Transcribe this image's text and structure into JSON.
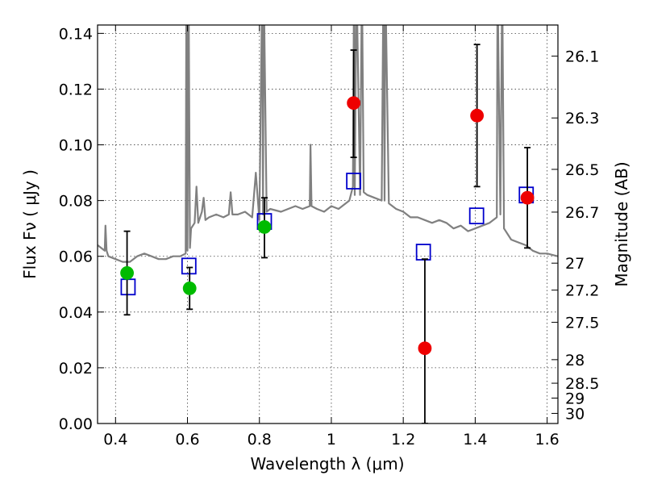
{
  "chart_data": {
    "type": "scatter",
    "title": "",
    "xlabel": "Wavelength  λ (μm)",
    "ylabel": "Flux  Fν  ( μJy )",
    "y2label": "Magnitude (AB)",
    "xlim": [
      0.35,
      1.63
    ],
    "ylim": [
      0.0,
      0.143
    ],
    "grid": true,
    "x_ticks": [
      0.4,
      0.6,
      0.8,
      1.0,
      1.2,
      1.4,
      1.6
    ],
    "x_tick_labels": [
      "0.4",
      "0.6",
      "0.8",
      "1",
      "1.2",
      "1.4",
      "1.6"
    ],
    "y_ticks": [
      0.0,
      0.02,
      0.04,
      0.06,
      0.08,
      0.1,
      0.12,
      0.14
    ],
    "y_tick_labels": [
      "0.00",
      "0.02",
      "0.04",
      "0.06",
      "0.08",
      "0.10",
      "0.12",
      "0.14"
    ],
    "mag_tick_labels": [
      "26.1",
      "26.3",
      "26.5",
      "26.7",
      "27",
      "27.2",
      "27.5",
      "28",
      "28.5",
      "29",
      "30"
    ],
    "model_spectrum": {
      "color": "#808080",
      "x": [
        0.35,
        0.37,
        0.372,
        0.375,
        0.38,
        0.4,
        0.42,
        0.44,
        0.46,
        0.48,
        0.5,
        0.52,
        0.54,
        0.56,
        0.58,
        0.595,
        0.597,
        0.6,
        0.603,
        0.607,
        0.61,
        0.62,
        0.625,
        0.63,
        0.64,
        0.645,
        0.65,
        0.66,
        0.68,
        0.7,
        0.715,
        0.72,
        0.725,
        0.74,
        0.76,
        0.78,
        0.79,
        0.8,
        0.808,
        0.81,
        0.812,
        0.82,
        0.83,
        0.86,
        0.88,
        0.9,
        0.92,
        0.94,
        0.942,
        0.945,
        0.96,
        0.98,
        1.0,
        1.02,
        1.04,
        1.05,
        1.06,
        1.063,
        1.065,
        1.07,
        1.08,
        1.085,
        1.09,
        1.1,
        1.12,
        1.14,
        1.145,
        1.148,
        1.15,
        1.16,
        1.18,
        1.2,
        1.22,
        1.24,
        1.26,
        1.28,
        1.3,
        1.32,
        1.34,
        1.36,
        1.38,
        1.4,
        1.42,
        1.44,
        1.46,
        1.462,
        1.47,
        1.475,
        1.48,
        1.5,
        1.52,
        1.54,
        1.56,
        1.58,
        1.6,
        1.63
      ],
      "flux": [
        0.064,
        0.062,
        0.071,
        0.062,
        0.06,
        0.059,
        0.058,
        0.058,
        0.06,
        0.061,
        0.06,
        0.059,
        0.059,
        0.06,
        0.06,
        0.061,
        0.16,
        0.062,
        0.16,
        0.063,
        0.07,
        0.072,
        0.085,
        0.072,
        0.076,
        0.081,
        0.073,
        0.074,
        0.075,
        0.074,
        0.075,
        0.083,
        0.075,
        0.075,
        0.076,
        0.074,
        0.09,
        0.073,
        0.16,
        0.075,
        0.16,
        0.076,
        0.077,
        0.076,
        0.077,
        0.078,
        0.077,
        0.078,
        0.1,
        0.078,
        0.077,
        0.076,
        0.078,
        0.077,
        0.079,
        0.08,
        0.085,
        0.16,
        0.082,
        0.16,
        0.082,
        0.16,
        0.083,
        0.082,
        0.081,
        0.08,
        0.16,
        0.08,
        0.16,
        0.079,
        0.077,
        0.076,
        0.074,
        0.074,
        0.073,
        0.072,
        0.073,
        0.072,
        0.07,
        0.071,
        0.069,
        0.07,
        0.071,
        0.072,
        0.074,
        0.16,
        0.075,
        0.16,
        0.07,
        0.066,
        0.065,
        0.064,
        0.062,
        0.061,
        0.061,
        0.06
      ]
    },
    "synthetic_photometry": {
      "marker": "open-square",
      "color": "#0000cc",
      "x": [
        0.435,
        0.604,
        0.814,
        1.062,
        1.256,
        1.404,
        1.542
      ],
      "flux": [
        0.049,
        0.0565,
        0.0725,
        0.087,
        0.0615,
        0.0745,
        0.082
      ]
    },
    "observed_detections": {
      "marker": "filled-circle",
      "color": "#00bb00",
      "x": [
        0.432,
        0.606,
        0.814
      ],
      "flux": [
        0.054,
        0.0485,
        0.0705
      ],
      "err_low": [
        0.039,
        0.041,
        0.0595
      ],
      "err_high": [
        0.069,
        0.056,
        0.081
      ]
    },
    "observed_upper_limits": {
      "marker": "filled-circle",
      "color": "#ee0000",
      "x": [
        1.062,
        1.26,
        1.405,
        1.545
      ],
      "flux": [
        0.115,
        0.027,
        0.1105,
        0.081
      ],
      "err_low": [
        0.0955,
        0.0,
        0.085,
        0.063
      ],
      "err_high": [
        0.134,
        0.059,
        0.136,
        0.099
      ]
    }
  }
}
